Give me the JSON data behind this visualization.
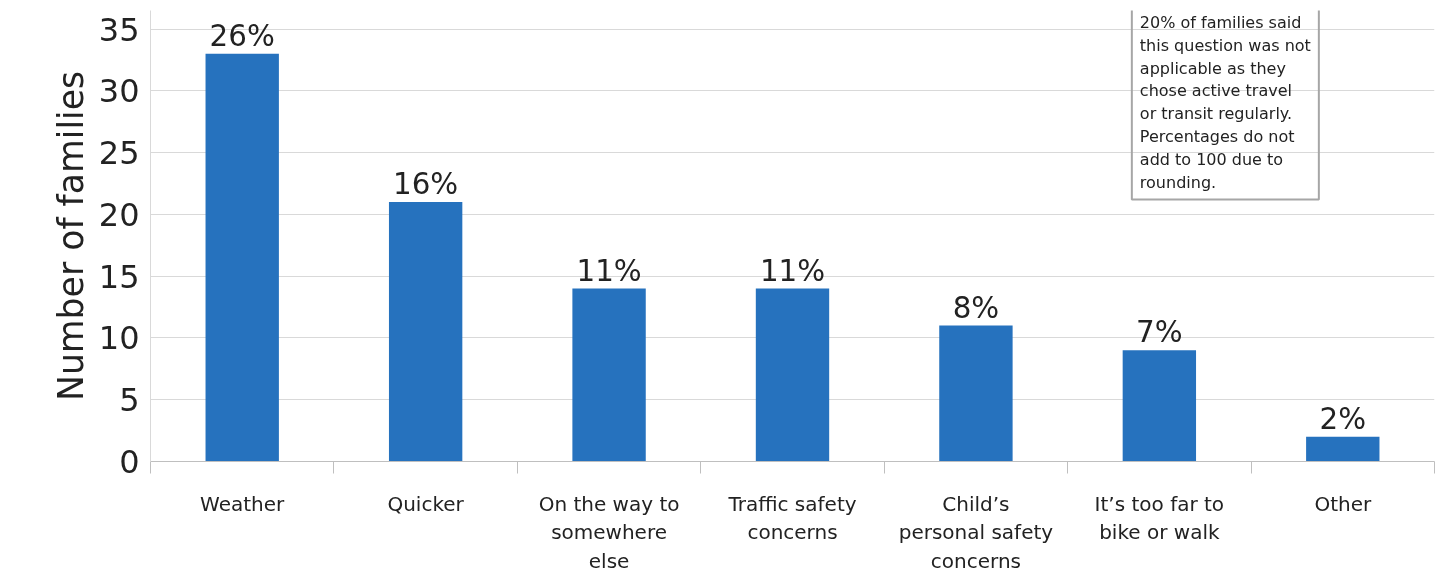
{
  "chart_data": {
    "type": "bar",
    "ylabel": "Number of families",
    "categories": [
      "Weather",
      "Quicker",
      "On the way to\nsomewhere\nelse",
      "Traffic safety\nconcerns",
      "Child’s\npersonal safety\nconcerns",
      "It’s too far to\nbike or walk",
      "Other"
    ],
    "values": [
      33,
      21,
      14,
      14,
      11,
      9,
      2
    ],
    "color": "#2672be",
    "ylim": [
      0,
      36.5
    ],
    "yticks": [
      0,
      5,
      10,
      15,
      20,
      25,
      30,
      35
    ],
    "grid": "y",
    "annotations": [
      {
        "text": "26%",
        "x": "Weather",
        "y": 33
      },
      {
        "text": "16%",
        "x": "Quicker",
        "y": 21
      },
      {
        "text": "11%",
        "x": "On the way to\nsomewhere\nelse",
        "y": 14
      },
      {
        "text": "11%",
        "x": "Traffic safety\nconcerns",
        "y": 14
      },
      {
        "text": "8%",
        "x": "Child’s\npersonal safety\nconcerns",
        "y": 11
      },
      {
        "text": "7%",
        "x": "It’s too far to\nbike or walk",
        "y": 9
      },
      {
        "text": "2%",
        "x": "Other",
        "y": 2
      },
      "20% of families said\nthis question was not\napplicable as they\nchose active travel\nor transit regularly.\nPercentages do not\nadd to 100 due to\nrounding."
    ]
  }
}
